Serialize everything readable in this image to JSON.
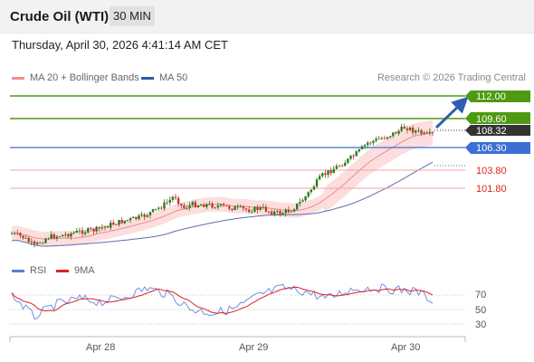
{
  "header": {
    "title": "Crude Oil (WTI)",
    "timeframe": "30 MIN"
  },
  "datetime": "Thursday, April 30, 2026 4:41:14 AM CET",
  "legend": {
    "items": [
      {
        "label": "MA 20 + Bollinger Bands",
        "color": "#f28b8b"
      },
      {
        "label": "MA 50",
        "color": "#2b5aa0"
      }
    ],
    "credit": "Research © 2026 Trading Central"
  },
  "levels": [
    {
      "label": "112.00",
      "value": 112.0,
      "kind": "target",
      "color": "#4d9a12"
    },
    {
      "label": "109.60",
      "value": 109.6,
      "kind": "resistance",
      "color": "#4d9a12"
    },
    {
      "label": "108.32",
      "value": 108.32,
      "kind": "last",
      "color": "#333333"
    },
    {
      "label": "106.30",
      "value": 106.3,
      "kind": "pivot",
      "color": "#3b6fd6"
    },
    {
      "label": "103.80",
      "value": 103.8,
      "kind": "support",
      "color": "#f07c7c"
    },
    {
      "label": "101.80",
      "value": 101.8,
      "kind": "support",
      "color": "#f07c7c"
    }
  ],
  "rsi_legend": {
    "items": [
      {
        "label": "RSI",
        "color": "#5b7fd6"
      },
      {
        "label": "9MA",
        "color": "#dd2222"
      }
    ]
  },
  "rsi_axis": [
    "70",
    "50",
    "30"
  ],
  "x_axis": [
    "Apr 28",
    "Apr 29",
    "Apr 30"
  ]
}
